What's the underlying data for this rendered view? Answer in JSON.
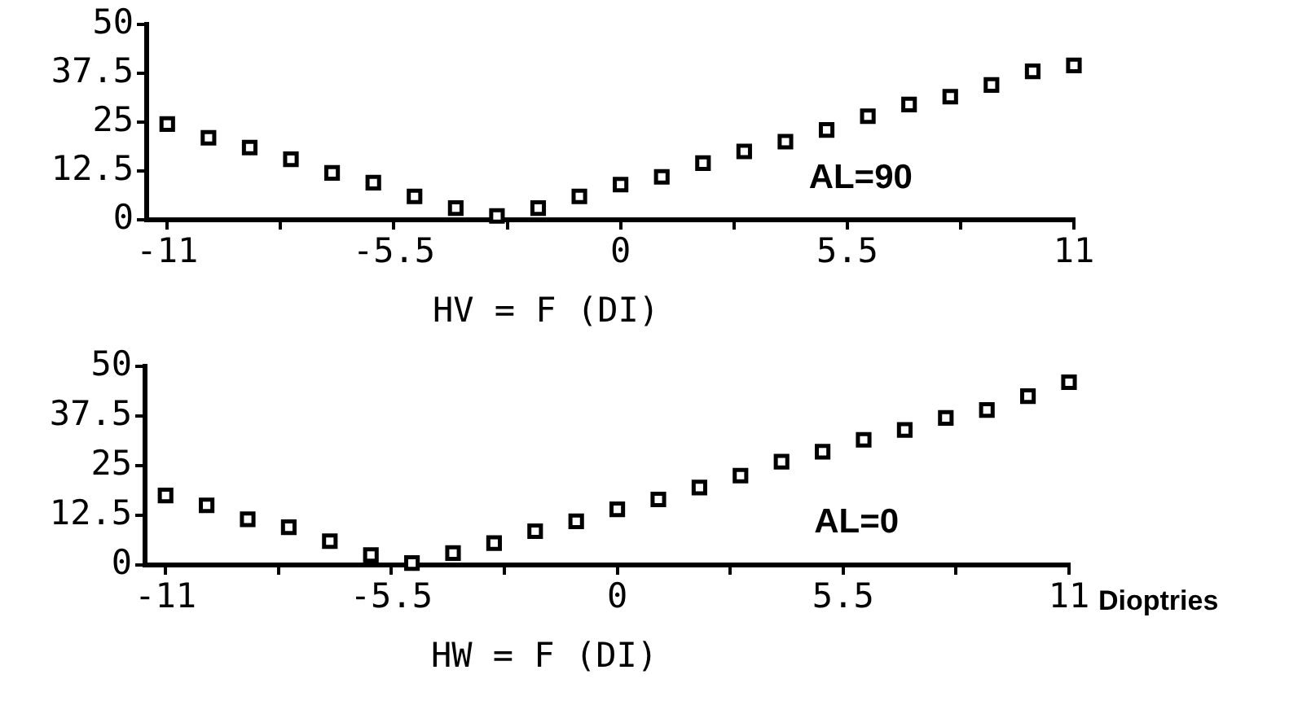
{
  "chart_data": [
    {
      "type": "scatter",
      "title": "HV = F (DI)",
      "annotations": [
        "AL=90"
      ],
      "x": [
        -11,
        -10,
        -9,
        -8,
        -7,
        -6,
        -5,
        -4,
        -3,
        -2,
        -1,
        0,
        1,
        2,
        3,
        4,
        5,
        6,
        7,
        8,
        9,
        10,
        11
      ],
      "values": [
        24.5,
        21,
        18.5,
        15.5,
        12,
        9.5,
        6,
        3,
        1,
        3,
        6,
        9,
        11,
        14.5,
        17.5,
        20,
        23,
        26.5,
        29.5,
        31.5,
        34.5,
        38,
        39.5
      ],
      "color": "#000000",
      "marker": "square",
      "xlim": [
        -11.5,
        11
      ],
      "xticks": [
        -11,
        {
          "value": -8.25,
          "label": null
        },
        -5.5,
        {
          "value": -2.75,
          "label": null
        },
        0,
        {
          "value": 2.75,
          "label": null
        },
        5.5,
        {
          "value": 8.25,
          "label": null
        },
        11
      ],
      "ylim": [
        0,
        50
      ],
      "yticks": [
        0,
        12.5,
        25,
        37.5,
        50
      ]
    },
    {
      "type": "scatter",
      "title": "HW = F (DI)",
      "xlabel": "Dioptries",
      "annotations": [
        "AL=0"
      ],
      "x": [
        -11,
        -10,
        -9,
        -8,
        -7,
        -6,
        -5,
        -4,
        -3,
        -2,
        -1,
        0,
        1,
        2,
        3,
        4,
        5,
        6,
        7,
        8,
        9,
        10,
        11
      ],
      "values": [
        17.5,
        15,
        11.5,
        9.5,
        6,
        2.5,
        0.5,
        3,
        5.5,
        8.5,
        11,
        14,
        16.5,
        19.5,
        22.5,
        26,
        28.5,
        31.5,
        34,
        37,
        39,
        42.5,
        46
      ],
      "color": "#000000",
      "marker": "square",
      "xlim": [
        -11.5,
        11
      ],
      "xticks": [
        -11,
        {
          "value": -8.25,
          "label": null
        },
        -5.5,
        {
          "value": -2.75,
          "label": null
        },
        0,
        {
          "value": 2.75,
          "label": null
        },
        5.5,
        {
          "value": 8.25,
          "label": null
        },
        11
      ],
      "ylim": [
        0,
        50
      ],
      "yticks": [
        0,
        12.5,
        25,
        37.5,
        50
      ]
    }
  ]
}
